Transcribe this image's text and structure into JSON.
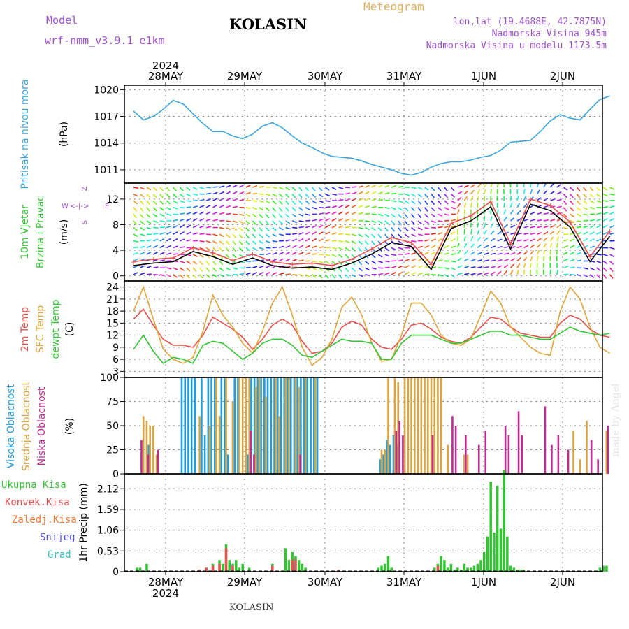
{
  "header": {
    "model_label": "Model",
    "model_name": "wrf-nmm_v3.9.1 e1km",
    "station": "KOLASIN",
    "meteogram": "Meteogram",
    "lonlat": "lon,lat (19.4688E, 42.7875N)",
    "altitude": "Nadmorska Visina 945m",
    "model_altitude": "Nadmorska Visina u modelu 1173.5m"
  },
  "footer": {
    "station": "KOLASIN",
    "credit": "made by Angel"
  },
  "colors": {
    "pressure": "#3aa6dc",
    "wind_speed": "#000000",
    "wind_gust": "#e85050",
    "t2m": "#e8504a",
    "sfc_temp": "#dfa53c",
    "dewpoint": "#33c433",
    "high_cloud": "#1e9ee0",
    "mid_cloud": "#d9a441",
    "low_cloud": "#bf2c92",
    "total_precip": "#33c433",
    "conv_precip": "#e85050",
    "frz_precip": "#f07a30",
    "snow": "#5050e0",
    "graupel": "#33c0c0",
    "header_purple": "#a050d0",
    "meteogram_orange": "#e0b060"
  },
  "x_axis": {
    "days": [
      "28MAY",
      "29MAY",
      "30MAY",
      "31MAY",
      "1JUN",
      "2JUN"
    ],
    "year_top": "2024",
    "year_bottom": "2024"
  },
  "chart_data": [
    {
      "type": "line",
      "title": "",
      "ylabel": [
        "Pritisak na nivou mora",
        "(hPa)"
      ],
      "ylim": [
        1009.5,
        1020.5
      ],
      "yticks": [
        1011,
        1014,
        1017,
        1020
      ],
      "grid": true,
      "series": [
        {
          "name": "Pritisak na nivou mora",
          "x_hours": [
            0,
            3,
            6,
            9,
            12,
            15,
            18,
            21,
            24,
            27,
            30,
            33,
            36,
            39,
            42,
            45,
            48,
            51,
            54,
            57,
            60,
            63,
            66,
            69,
            72,
            75,
            78,
            81,
            84,
            87,
            90,
            93,
            96,
            99,
            102,
            105,
            108,
            111,
            114,
            117,
            120,
            123,
            126,
            129,
            132,
            135,
            138,
            141,
            144
          ],
          "values": [
            1017.6,
            1016.6,
            1017.0,
            1017.8,
            1018.8,
            1018.4,
            1017.3,
            1016.2,
            1015.3,
            1015.3,
            1014.8,
            1014.5,
            1015.0,
            1015.9,
            1016.3,
            1015.7,
            1014.8,
            1014.0,
            1013.5,
            1012.9,
            1012.5,
            1012.4,
            1012.3,
            1012.0,
            1011.6,
            1011.3,
            1011.0,
            1010.6,
            1010.4,
            1010.7,
            1011.3,
            1011.7,
            1011.9,
            1011.9,
            1012.1,
            1012.4,
            1012.6,
            1013.2,
            1014.1,
            1014.2,
            1014.3,
            1015.3,
            1016.5,
            1017.2,
            1016.8,
            1016.6,
            1017.8,
            1018.9,
            1019.3
          ]
        }
      ]
    },
    {
      "type": "line",
      "title": "",
      "ylabel": [
        "10m Vjetar",
        "Brzina i Pravac",
        "(m/s)"
      ],
      "direction_legend": {
        "north": "Z",
        "west": "W",
        "east": "E",
        "south": "S"
      },
      "ylim": [
        -0.8,
        14.5
      ],
      "yticks": [
        0,
        4,
        8,
        12
      ],
      "grid": true,
      "series": [
        {
          "name": "10m Vjetar",
          "x_hours": [
            0,
            6,
            12,
            18,
            24,
            30,
            36,
            42,
            48,
            54,
            60,
            66,
            72,
            78,
            84,
            90,
            96,
            102,
            108,
            114,
            120,
            126,
            132,
            138,
            144
          ],
          "values": [
            1.6,
            2.0,
            2.2,
            3.8,
            3.0,
            1.8,
            2.8,
            1.6,
            1.2,
            1.4,
            1.0,
            2.0,
            3.4,
            5.2,
            4.6,
            1.0,
            7.4,
            8.6,
            10.8,
            4.2,
            11.2,
            10.2,
            7.6,
            2.2,
            6.2
          ]
        },
        {
          "name": "Udari",
          "x_hours": [
            0,
            6,
            12,
            18,
            24,
            30,
            36,
            42,
            48,
            54,
            60,
            66,
            72,
            78,
            84,
            90,
            96,
            102,
            108,
            114,
            120,
            126,
            132,
            138,
            144
          ],
          "values": [
            2.2,
            2.6,
            2.8,
            4.4,
            3.6,
            2.4,
            3.4,
            2.2,
            1.8,
            2.0,
            1.6,
            2.6,
            4.2,
            6.0,
            5.2,
            1.8,
            8.2,
            9.4,
            11.6,
            5.0,
            12.0,
            11.0,
            8.4,
            3.0,
            7.0
          ]
        }
      ]
    },
    {
      "type": "line",
      "title": "",
      "ylabel": [
        "2m Temp",
        "SFC Temp",
        "dewpt Temp",
        "(C)"
      ],
      "ylim": [
        1.5,
        25.5
      ],
      "yticks": [
        3,
        6,
        9,
        12,
        15,
        18,
        21,
        24
      ],
      "grid": true,
      "series": [
        {
          "name": "2m Temp",
          "x_hours": [
            0,
            3,
            6,
            9,
            12,
            15,
            18,
            21,
            24,
            27,
            30,
            33,
            36,
            39,
            42,
            45,
            48,
            51,
            54,
            57,
            60,
            63,
            66,
            69,
            72,
            75,
            78,
            81,
            84,
            87,
            90,
            93,
            96,
            99,
            102,
            105,
            108,
            111,
            114,
            117,
            120,
            123,
            126,
            129,
            132,
            135,
            138,
            141,
            144
          ],
          "values": [
            16.0,
            18.5,
            14.5,
            11.0,
            9.5,
            9.5,
            9.0,
            12.0,
            16.5,
            15.0,
            13.5,
            11.5,
            8.5,
            11.0,
            14.5,
            16.0,
            14.5,
            10.5,
            7.5,
            8.0,
            10.0,
            14.0,
            15.5,
            14.5,
            11.0,
            9.0,
            8.5,
            11.0,
            14.5,
            15.0,
            13.5,
            11.5,
            10.5,
            10.0,
            11.5,
            14.0,
            16.5,
            16.0,
            14.0,
            12.5,
            12.0,
            11.5,
            11.5,
            15.0,
            17.0,
            16.0,
            13.5,
            12.0,
            11.5
          ]
        },
        {
          "name": "SFC Temp",
          "x_hours": [
            0,
            3,
            6,
            9,
            12,
            15,
            18,
            21,
            24,
            27,
            30,
            33,
            36,
            39,
            42,
            45,
            48,
            51,
            54,
            57,
            60,
            63,
            66,
            69,
            72,
            75,
            78,
            81,
            84,
            87,
            90,
            93,
            96,
            99,
            102,
            105,
            108,
            111,
            114,
            117,
            120,
            123,
            126,
            129,
            132,
            135,
            138,
            141,
            144
          ],
          "values": [
            18.0,
            24.0,
            16.0,
            8.5,
            6.0,
            5.0,
            6.5,
            13.0,
            22.0,
            17.0,
            14.0,
            10.0,
            7.5,
            13.0,
            20.0,
            24.0,
            17.0,
            9.0,
            4.5,
            6.5,
            11.0,
            19.0,
            21.5,
            17.0,
            10.0,
            5.5,
            6.0,
            12.0,
            20.0,
            20.0,
            17.0,
            12.0,
            10.0,
            9.5,
            11.0,
            17.0,
            23.0,
            20.0,
            14.0,
            11.5,
            9.0,
            7.5,
            7.0,
            18.0,
            24.0,
            21.0,
            14.0,
            9.0,
            7.5
          ]
        },
        {
          "name": "dewpt Temp",
          "x_hours": [
            0,
            3,
            6,
            9,
            12,
            15,
            18,
            21,
            24,
            27,
            30,
            33,
            36,
            39,
            42,
            45,
            48,
            51,
            54,
            57,
            60,
            63,
            66,
            69,
            72,
            75,
            78,
            81,
            84,
            87,
            90,
            93,
            96,
            99,
            102,
            105,
            108,
            111,
            114,
            117,
            120,
            123,
            126,
            129,
            132,
            135,
            138,
            141,
            144
          ],
          "values": [
            8.5,
            12.0,
            8.0,
            5.0,
            6.5,
            6.0,
            5.0,
            9.5,
            10.5,
            10.0,
            8.0,
            6.0,
            7.5,
            10.0,
            11.0,
            11.0,
            9.5,
            7.0,
            6.5,
            8.0,
            9.5,
            11.0,
            10.5,
            10.5,
            10.0,
            6.0,
            6.0,
            10.0,
            12.0,
            12.0,
            12.0,
            11.0,
            10.0,
            10.0,
            11.0,
            12.0,
            13.0,
            13.0,
            12.0,
            12.0,
            11.5,
            11.0,
            11.0,
            12.5,
            14.0,
            13.0,
            12.5,
            12.0,
            12.5
          ]
        }
      ]
    },
    {
      "type": "bar",
      "title": "",
      "ylabel": [
        "Visoka Oblacnost",
        "Srednja Oblacnost",
        "Niska Oblacnost",
        "(%)"
      ],
      "ylim": [
        0,
        100
      ],
      "yticks": [
        0,
        25,
        50,
        75,
        100
      ],
      "grid": true,
      "series": [
        {
          "name": "Visoka Oblacnost",
          "x_hours": [
            5,
            15,
            16,
            17,
            18,
            19,
            21,
            22,
            23,
            24,
            25,
            27,
            28,
            29,
            31,
            32,
            35,
            36,
            37,
            38,
            39,
            40,
            41,
            42,
            43,
            44,
            45,
            46,
            47,
            48,
            49,
            50,
            51,
            52,
            53,
            54,
            55,
            56,
            75,
            76,
            77,
            78,
            79,
            80
          ],
          "values": [
            30,
            100,
            100,
            100,
            100,
            100,
            100,
            40,
            100,
            100,
            100,
            100,
            100,
            20,
            100,
            100,
            20,
            100,
            100,
            100,
            100,
            100,
            100,
            100,
            100,
            100,
            100,
            100,
            100,
            100,
            100,
            100,
            100,
            100,
            100,
            100,
            100,
            100,
            15,
            20,
            35,
            30,
            40,
            30
          ]
        },
        {
          "name": "Srednja Oblacnost",
          "x_hours": [
            3,
            4,
            5,
            6,
            7,
            20,
            23,
            25,
            26,
            28,
            30,
            32,
            33,
            34,
            35,
            37,
            38,
            40,
            43,
            44,
            46,
            47,
            49,
            50,
            52,
            55,
            75,
            76,
            77,
            79,
            80,
            82,
            83,
            84,
            85,
            86,
            87,
            88,
            89,
            90,
            91,
            92,
            93,
            95,
            100,
            101,
            133,
            135,
            137,
            143
          ],
          "values": [
            60,
            55,
            50,
            50,
            20,
            60,
            50,
            100,
            60,
            100,
            75,
            100,
            100,
            100,
            100,
            90,
            100,
            80,
            100,
            60,
            100,
            100,
            100,
            90,
            100,
            100,
            25,
            25,
            100,
            100,
            95,
            100,
            100,
            100,
            100,
            100,
            100,
            100,
            100,
            100,
            100,
            100,
            100,
            30,
            20,
            20,
            45,
            15,
            55,
            45
          ]
        },
        {
          "name": "Niska Oblacnost",
          "x_hours": [
            2,
            4,
            7,
            35,
            36,
            50,
            79,
            80,
            81,
            90,
            96,
            97,
            100,
            104,
            106,
            112,
            113,
            116,
            117,
            124,
            126,
            128,
            131,
            138,
            140,
            143
          ],
          "values": [
            35,
            20,
            25,
            45,
            20,
            20,
            45,
            55,
            40,
            40,
            60,
            50,
            40,
            30,
            45,
            50,
            40,
            65,
            40,
            70,
            30,
            40,
            25,
            35,
            15,
            50
          ]
        }
      ]
    },
    {
      "type": "bar",
      "title": "",
      "ylabel": [
        "1hr Precip",
        "(mm)"
      ],
      "series_labels": [
        "Ukupna Kisa",
        "Konvek.Kisa",
        "Zaledj.Kisa",
        "Snijeg",
        "Grad"
      ],
      "ylim": [
        0,
        2.5
      ],
      "yticks": [
        0,
        0.53,
        1.06,
        1.59,
        2.12
      ],
      "grid": true,
      "series": [
        {
          "name": "Ukupna Kisa",
          "x_hours": [
            1,
            2,
            4,
            20,
            22,
            24,
            26,
            27,
            28,
            29,
            30,
            31,
            32,
            33,
            35,
            42,
            46,
            47,
            48,
            49,
            50,
            51,
            52,
            62,
            74,
            75,
            76,
            77,
            78,
            91,
            92,
            93,
            94,
            95,
            96,
            97,
            98,
            99,
            100,
            101,
            102,
            103,
            104,
            105,
            106,
            107,
            108,
            109,
            110,
            111,
            112,
            113,
            114,
            115,
            116,
            117,
            118,
            141,
            142,
            143
          ],
          "values": [
            0.1,
            0.1,
            0.2,
            0.05,
            0.1,
            0.2,
            0.3,
            0.2,
            0.7,
            0.3,
            0.2,
            0.3,
            0.1,
            0.2,
            0.1,
            0.2,
            0.6,
            0.3,
            0.5,
            0.4,
            0.3,
            0.2,
            0.1,
            0.05,
            0.1,
            0.15,
            0.2,
            0.4,
            0.1,
            0.1,
            0.2,
            0.4,
            0.3,
            0.1,
            0.2,
            0.05,
            0.1,
            0.05,
            0.2,
            0.1,
            0.1,
            0.15,
            0.2,
            0.3,
            0.5,
            0.9,
            2.3,
            1.0,
            2.2,
            1.1,
            2.6,
            0.9,
            0.15,
            0.1,
            0.05,
            0.05,
            0.05,
            0.1,
            0.15,
            0.15
          ]
        },
        {
          "name": "Konvek.Kisa",
          "x_hours": [
            20,
            22,
            24,
            26,
            28,
            30,
            42,
            48,
            49,
            62,
            92
          ],
          "values": [
            0.05,
            0.1,
            0.15,
            0.2,
            0.6,
            0.15,
            0.15,
            0.3,
            0.3,
            0.05,
            0.15
          ]
        }
      ]
    }
  ]
}
